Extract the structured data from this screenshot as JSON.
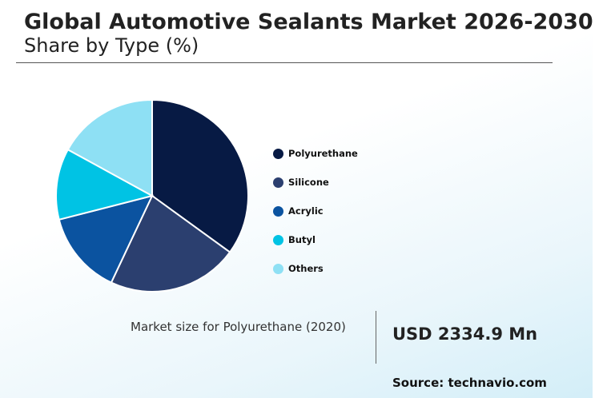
{
  "header": {
    "title": "Global Automotive Sealants Market 2026-2030",
    "subtitle": "Share by Type (%)"
  },
  "chart_data": {
    "type": "pie",
    "title": "Global Automotive Sealants Market 2026-2030",
    "subtitle": "Share by Type (%)",
    "categories": [
      "Polyurethane",
      "Silicone",
      "Acrylic",
      "Butyl",
      "Others"
    ],
    "values": [
      35,
      22,
      14,
      12,
      17
    ],
    "colors": [
      "#071a44",
      "#2b3f6f",
      "#0b53a0",
      "#00c3e4",
      "#8ee0f4"
    ],
    "legend_position": "right"
  },
  "market": {
    "label": "Market size for Polyurethane (2020)",
    "value": "USD 2334.9 Mn"
  },
  "source": "Source: technavio.com"
}
